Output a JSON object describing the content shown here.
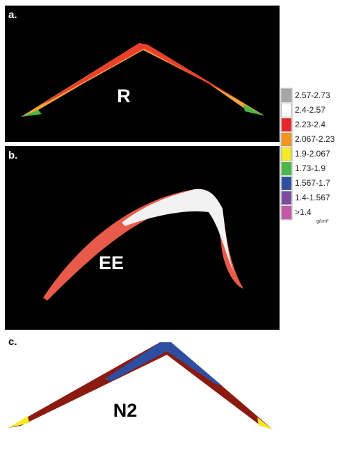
{
  "panels": [
    {
      "label": "a.",
      "name": "R"
    },
    {
      "label": "b.",
      "name": "EE"
    },
    {
      "label": "c.",
      "name": "N2"
    }
  ],
  "legend": {
    "items": [
      {
        "label": "2.57-2.73",
        "color": "#a6a6a6"
      },
      {
        "label": "2.4-2.57",
        "color": "#ffffff"
      },
      {
        "label": "2.23-2.4",
        "color": "#e8262a"
      },
      {
        "label": "2.067-2.23",
        "color": "#f7941d"
      },
      {
        "label": "1.9-2.067",
        "color": "#f4ea2a"
      },
      {
        "label": "1.73-1.9",
        "color": "#4cb748"
      },
      {
        "label": "1.567-1.7",
        "color": "#2e4ea2"
      },
      {
        "label": "1.4-1.567",
        "color": "#7b4c9e"
      },
      {
        "label": ">1.4",
        "color": "#c555a6"
      }
    ],
    "unit": "g/cm³"
  }
}
